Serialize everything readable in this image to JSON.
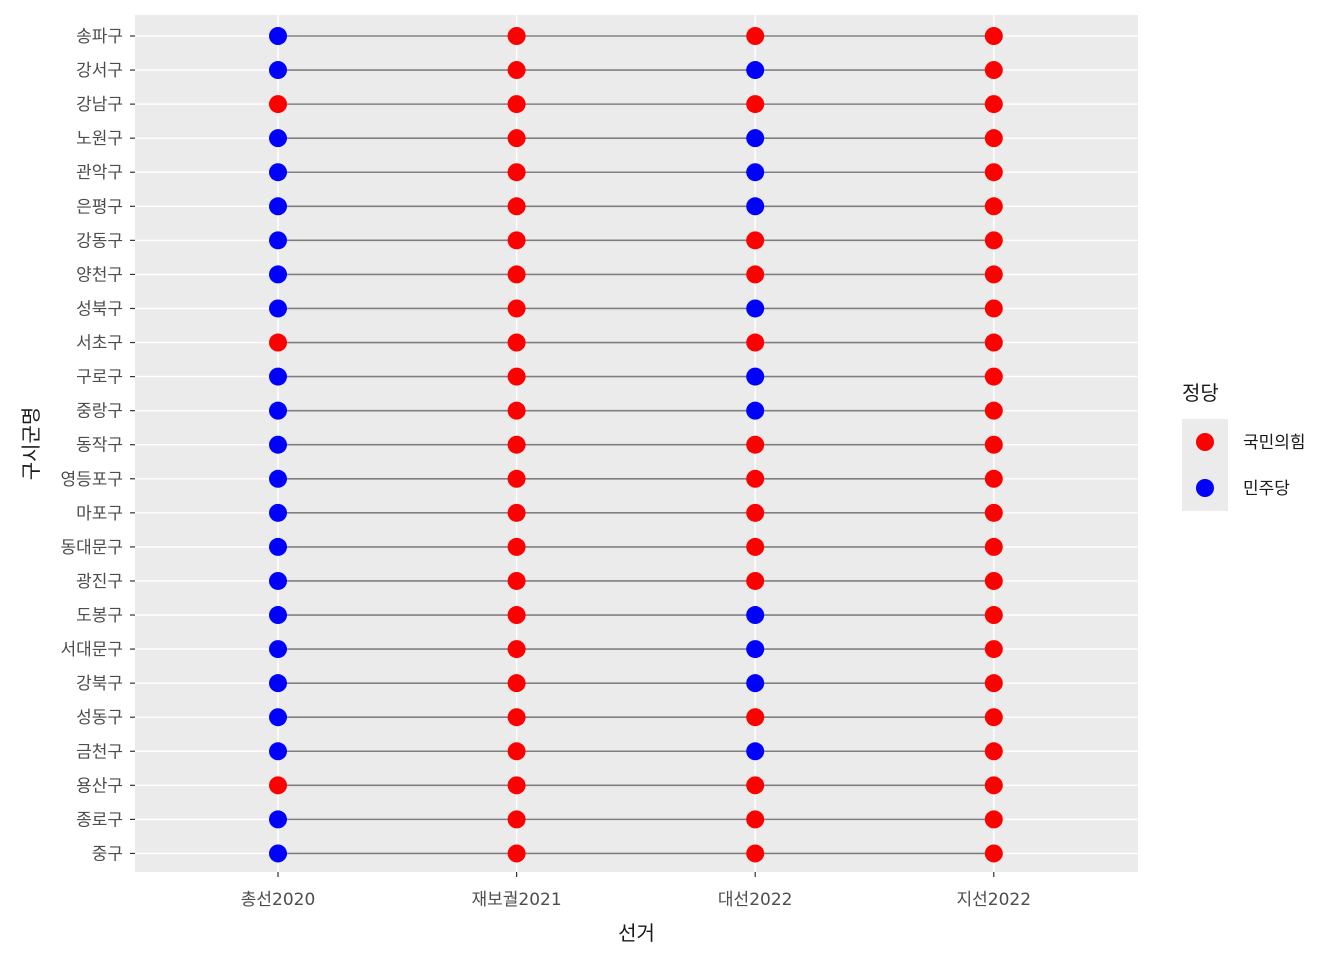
{
  "chart_data": {
    "type": "scatter",
    "title": "",
    "xlabel": "선거",
    "ylabel": "구시군명",
    "categories": [
      "총선2020",
      "재보궐2021",
      "대선2022",
      "지선2022"
    ],
    "rows": [
      {
        "name": "송파구",
        "values": [
          "민주당",
          "국민의힘",
          "국민의힘",
          "국민의힘"
        ]
      },
      {
        "name": "강서구",
        "values": [
          "민주당",
          "국민의힘",
          "민주당",
          "국민의힘"
        ]
      },
      {
        "name": "강남구",
        "values": [
          "국민의힘",
          "국민의힘",
          "국민의힘",
          "국민의힘"
        ]
      },
      {
        "name": "노원구",
        "values": [
          "민주당",
          "국민의힘",
          "민주당",
          "국민의힘"
        ]
      },
      {
        "name": "관악구",
        "values": [
          "민주당",
          "국민의힘",
          "민주당",
          "국민의힘"
        ]
      },
      {
        "name": "은평구",
        "values": [
          "민주당",
          "국민의힘",
          "민주당",
          "국민의힘"
        ]
      },
      {
        "name": "강동구",
        "values": [
          "민주당",
          "국민의힘",
          "국민의힘",
          "국민의힘"
        ]
      },
      {
        "name": "양천구",
        "values": [
          "민주당",
          "국민의힘",
          "국민의힘",
          "국민의힘"
        ]
      },
      {
        "name": "성북구",
        "values": [
          "민주당",
          "국민의힘",
          "민주당",
          "국민의힘"
        ]
      },
      {
        "name": "서초구",
        "values": [
          "국민의힘",
          "국민의힘",
          "국민의힘",
          "국민의힘"
        ]
      },
      {
        "name": "구로구",
        "values": [
          "민주당",
          "국민의힘",
          "민주당",
          "국민의힘"
        ]
      },
      {
        "name": "중랑구",
        "values": [
          "민주당",
          "국민의힘",
          "민주당",
          "국민의힘"
        ]
      },
      {
        "name": "동작구",
        "values": [
          "민주당",
          "국민의힘",
          "국민의힘",
          "국민의힘"
        ]
      },
      {
        "name": "영등포구",
        "values": [
          "민주당",
          "국민의힘",
          "국민의힘",
          "국민의힘"
        ]
      },
      {
        "name": "마포구",
        "values": [
          "민주당",
          "국민의힘",
          "국민의힘",
          "국민의힘"
        ]
      },
      {
        "name": "동대문구",
        "values": [
          "민주당",
          "국민의힘",
          "국민의힘",
          "국민의힘"
        ]
      },
      {
        "name": "광진구",
        "values": [
          "민주당",
          "국민의힘",
          "국민의힘",
          "국민의힘"
        ]
      },
      {
        "name": "도봉구",
        "values": [
          "민주당",
          "국민의힘",
          "민주당",
          "국민의힘"
        ]
      },
      {
        "name": "서대문구",
        "values": [
          "민주당",
          "국민의힘",
          "민주당",
          "국민의힘"
        ]
      },
      {
        "name": "강북구",
        "values": [
          "민주당",
          "국민의힘",
          "민주당",
          "국민의힘"
        ]
      },
      {
        "name": "성동구",
        "values": [
          "민주당",
          "국민의힘",
          "국민의힘",
          "국민의힘"
        ]
      },
      {
        "name": "금천구",
        "values": [
          "민주당",
          "국민의힘",
          "민주당",
          "국민의힘"
        ]
      },
      {
        "name": "용산구",
        "values": [
          "국민의힘",
          "국민의힘",
          "국민의힘",
          "국민의힘"
        ]
      },
      {
        "name": "종로구",
        "values": [
          "민주당",
          "국민의힘",
          "국민의힘",
          "국민의힘"
        ]
      },
      {
        "name": "중구",
        "values": [
          "민주당",
          "국민의힘",
          "국민의힘",
          "국민의힘"
        ]
      }
    ],
    "legend": {
      "title": "정당",
      "position": "right",
      "items": [
        {
          "label": "국민의힘",
          "color": "#ff0000"
        },
        {
          "label": "민주당",
          "color": "#0000ff"
        }
      ]
    },
    "colors": {
      "panel_background": "#ebebeb",
      "grid": "#ffffff",
      "connector_line": "#7f7f7f"
    },
    "grid": true
  }
}
